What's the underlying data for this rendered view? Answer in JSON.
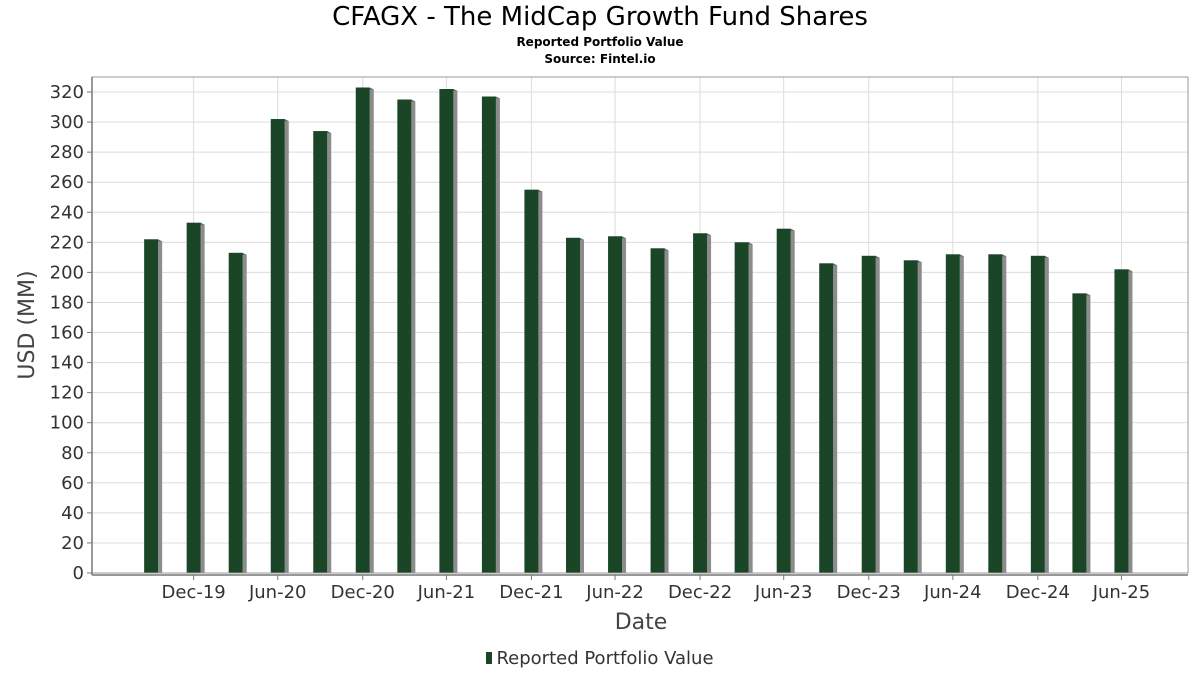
{
  "chart_data": {
    "type": "bar",
    "title": "CFAGX - The MidCap Growth Fund Shares",
    "subtitle": "Reported Portfolio Value",
    "source": "Source: Fintel.io",
    "xlabel": "Date",
    "ylabel": "USD (MM)",
    "ylim": [
      0,
      330
    ],
    "yticks": [
      0,
      20,
      40,
      60,
      80,
      100,
      120,
      140,
      160,
      180,
      200,
      220,
      240,
      260,
      280,
      300,
      320
    ],
    "x_tick_labels": [
      "Dec-19",
      "Jun-20",
      "Dec-20",
      "Jun-21",
      "Dec-21",
      "Jun-22",
      "Dec-22",
      "Jun-23",
      "Dec-23",
      "Jun-24",
      "Dec-24",
      "Jun-25"
    ],
    "grid": true,
    "legend_position": "bottom",
    "colors": {
      "bar": "#1a4526",
      "shadow": "#8c8c8c",
      "grid": "#dcdcdc"
    },
    "series": [
      {
        "name": "Reported Portfolio Value",
        "x": [
          "2019-09-30",
          "2019-12-31",
          "2020-03-31",
          "2020-06-30",
          "2020-09-30",
          "2020-12-31",
          "2021-03-31",
          "2021-06-30",
          "2021-09-30",
          "2021-12-31",
          "2022-03-31",
          "2022-06-30",
          "2022-09-30",
          "2022-12-31",
          "2023-03-31",
          "2023-06-30",
          "2023-09-30",
          "2023-12-31",
          "2024-03-31",
          "2024-06-30",
          "2024-09-30",
          "2024-12-31",
          "2025-03-31",
          "2025-06-30"
        ],
        "values": [
          222,
          233,
          213,
          302,
          294,
          323,
          315,
          322,
          317,
          255,
          223,
          224,
          216,
          226,
          220,
          229,
          206,
          211,
          208,
          212,
          212,
          211,
          186,
          202
        ]
      }
    ]
  }
}
